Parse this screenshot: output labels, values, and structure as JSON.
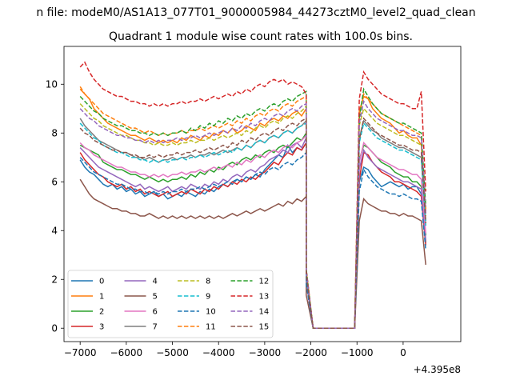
{
  "figure": {
    "suptitle": "n file: modeM0/AS1A13_077T01_9000005984_44273cztM0_level2_quad_clean",
    "title": "Quadrant 1 module wise count rates with 100.0s bins.",
    "offset_label": "+4.395e8"
  },
  "chart_data": {
    "type": "line",
    "title": "Quadrant 1 module wise count rates with 100.0s bins.",
    "xlabel": "",
    "ylabel": "",
    "x_offset": 439500000,
    "xlim": [
      -7350,
      1250
    ],
    "ylim": [
      -0.55,
      11.55
    ],
    "xticks": [
      -7000,
      -6000,
      -5000,
      -4000,
      -3000,
      -2000,
      -1000,
      0
    ],
    "xtick_labels": [
      "−7000",
      "−6000",
      "−5000",
      "−4000",
      "−3000",
      "−2000",
      "−1000",
      "0"
    ],
    "yticks": [
      0,
      2,
      4,
      6,
      8,
      10
    ],
    "ytick_labels": [
      "0",
      "2",
      "4",
      "6",
      "8",
      "10"
    ],
    "grid": false,
    "legend": {
      "placement": "lower-left",
      "ncol": 4
    },
    "gap": {
      "drop_start": -2100,
      "zero_start": -1950,
      "zero_end": -1050,
      "rise_end": -950
    },
    "x_segment1": [
      -7000,
      7,
      -2100
    ],
    "x_segment2": [
      -950,
      14,
      490
    ],
    "series": [
      {
        "name": "0",
        "color": "#1f77b4",
        "dash": false,
        "seg1": [
          6.9,
          6.6,
          6.4,
          6.3,
          6.1,
          5.9,
          5.8,
          5.9,
          5.7,
          5.8,
          5.6,
          5.7,
          5.5,
          5.6,
          5.4,
          5.5,
          5.6,
          5.4,
          5.5,
          5.3,
          5.4,
          5.5,
          5.4,
          5.6,
          5.5,
          5.4,
          5.6,
          5.5,
          5.7,
          5.6,
          5.8,
          5.9,
          5.8,
          6.0,
          6.1,
          6.0,
          6.2,
          6.1,
          6.3,
          6.2,
          6.5,
          6.7,
          6.9,
          7.1,
          7.0,
          7.5,
          7.2,
          7.4,
          7.3,
          7.6
        ],
        "seg2": [
          6.0,
          6.6,
          6.5,
          6.2,
          6.0,
          5.8,
          5.9,
          6.0,
          5.9,
          5.8,
          5.9,
          5.7,
          5.8,
          5.8,
          5.5,
          3.5
        ]
      },
      {
        "name": "1",
        "color": "#ff7f0e",
        "dash": false,
        "seg1": [
          9.8,
          9.6,
          9.4,
          9.0,
          8.8,
          8.6,
          8.4,
          8.3,
          8.2,
          8.1,
          8.0,
          7.9,
          7.9,
          7.8,
          7.7,
          7.8,
          7.7,
          7.6,
          7.7,
          7.6,
          7.7,
          7.6,
          7.8,
          7.7,
          7.9,
          7.8,
          7.7,
          7.9,
          7.8,
          8.0,
          7.9,
          8.1,
          8.0,
          8.2,
          8.0,
          8.1,
          8.3,
          8.2,
          8.1,
          8.4,
          8.3,
          8.5,
          8.6,
          8.5,
          8.7,
          8.6,
          8.8,
          8.9,
          8.7,
          9.0
        ],
        "seg2": [
          8.9,
          9.5,
          9.4,
          9.0,
          8.8,
          8.6,
          8.5,
          8.4,
          8.2,
          8.0,
          8.1,
          7.9,
          7.8,
          7.8,
          7.5,
          4.8
        ]
      },
      {
        "name": "2",
        "color": "#2ca02c",
        "dash": false,
        "seg1": [
          7.5,
          7.4,
          7.3,
          7.2,
          7.1,
          6.8,
          6.7,
          6.6,
          6.5,
          6.5,
          6.4,
          6.3,
          6.3,
          6.2,
          6.1,
          6.2,
          6.1,
          6.0,
          6.1,
          6.0,
          6.1,
          6.1,
          6.2,
          6.1,
          6.3,
          6.2,
          6.4,
          6.3,
          6.5,
          6.4,
          6.6,
          6.5,
          6.7,
          6.8,
          6.7,
          6.9,
          7.0,
          6.9,
          7.1,
          7.0,
          7.2,
          7.3,
          7.2,
          7.4,
          7.5,
          7.4,
          7.6,
          7.8,
          7.7,
          8.0
        ],
        "seg2": [
          6.9,
          7.5,
          7.4,
          7.2,
          7.0,
          6.8,
          6.7,
          6.6,
          6.4,
          6.3,
          6.2,
          6.2,
          6.0,
          6.0,
          5.8,
          3.8
        ]
      },
      {
        "name": "3",
        "color": "#d62728",
        "dash": false,
        "seg1": [
          7.2,
          6.9,
          6.7,
          6.5,
          6.3,
          6.2,
          6.0,
          5.9,
          5.8,
          5.9,
          5.7,
          5.8,
          5.6,
          5.7,
          5.5,
          5.6,
          5.5,
          5.4,
          5.5,
          5.6,
          5.4,
          5.5,
          5.6,
          5.5,
          5.7,
          5.6,
          5.5,
          5.7,
          5.6,
          5.8,
          5.7,
          5.9,
          5.8,
          6.0,
          5.9,
          6.1,
          6.0,
          6.2,
          6.1,
          6.3,
          6.4,
          6.6,
          6.8,
          6.7,
          7.0,
          7.2,
          7.1,
          7.4,
          7.3,
          7.6
        ],
        "seg2": [
          6.1,
          7.2,
          7.1,
          6.8,
          6.6,
          6.4,
          6.3,
          6.2,
          6.0,
          6.0,
          5.9,
          5.8,
          5.7,
          5.6,
          5.4,
          3.4
        ]
      },
      {
        "name": "4",
        "color": "#9467bd",
        "dash": false,
        "seg1": [
          7.4,
          7.2,
          7.0,
          6.8,
          6.6,
          6.5,
          6.4,
          6.3,
          6.2,
          6.1,
          6.0,
          5.9,
          5.8,
          5.9,
          5.7,
          5.8,
          5.7,
          5.6,
          5.7,
          5.8,
          5.6,
          5.7,
          5.8,
          5.7,
          5.9,
          5.8,
          5.7,
          5.9,
          5.8,
          6.0,
          5.9,
          6.1,
          6.0,
          6.2,
          6.3,
          6.2,
          6.4,
          6.5,
          6.4,
          6.6,
          6.7,
          6.9,
          7.0,
          7.1,
          7.3,
          7.2,
          7.5,
          7.6,
          7.4,
          7.8
        ],
        "seg2": [
          6.5,
          7.3,
          7.0,
          6.8,
          6.6,
          6.5,
          6.4,
          6.3,
          6.2,
          6.1,
          6.0,
          6.0,
          5.9,
          5.8,
          5.7,
          3.6
        ]
      },
      {
        "name": "5",
        "color": "#8c564b",
        "dash": false,
        "seg1": [
          6.1,
          5.8,
          5.5,
          5.3,
          5.2,
          5.1,
          5.0,
          4.9,
          4.9,
          4.8,
          4.8,
          4.7,
          4.7,
          4.6,
          4.6,
          4.7,
          4.6,
          4.5,
          4.6,
          4.5,
          4.6,
          4.5,
          4.6,
          4.5,
          4.6,
          4.5,
          4.6,
          4.5,
          4.6,
          4.5,
          4.6,
          4.5,
          4.6,
          4.7,
          4.6,
          4.7,
          4.8,
          4.7,
          4.8,
          4.9,
          4.8,
          4.9,
          5.0,
          5.1,
          5.0,
          5.2,
          5.1,
          5.3,
          5.2,
          5.4
        ],
        "seg2": [
          4.4,
          5.3,
          5.1,
          5.0,
          4.9,
          4.8,
          4.8,
          4.7,
          4.7,
          4.6,
          4.7,
          4.6,
          4.6,
          4.5,
          4.4,
          2.6
        ]
      },
      {
        "name": "6",
        "color": "#e377c2",
        "dash": false,
        "seg1": [
          7.6,
          7.4,
          7.3,
          7.1,
          7.0,
          6.9,
          6.8,
          6.7,
          6.6,
          6.6,
          6.5,
          6.4,
          6.4,
          6.3,
          6.3,
          6.2,
          6.3,
          6.2,
          6.3,
          6.2,
          6.3,
          6.3,
          6.4,
          6.3,
          6.4,
          6.4,
          6.5,
          6.4,
          6.5,
          6.6,
          6.5,
          6.6,
          6.7,
          6.6,
          6.8,
          6.7,
          6.9,
          6.8,
          7.0,
          7.1,
          7.0,
          7.2,
          7.3,
          7.2,
          7.4,
          7.5,
          7.4,
          7.6,
          7.7,
          7.9
        ],
        "seg2": [
          6.8,
          7.6,
          7.4,
          7.2,
          7.0,
          6.9,
          6.8,
          6.7,
          6.6,
          6.5,
          6.5,
          6.4,
          6.3,
          6.3,
          6.1,
          3.9
        ]
      },
      {
        "name": "7",
        "color": "#7f7f7f",
        "dash": false,
        "seg1": [
          8.6,
          8.3,
          8.1,
          7.9,
          7.7,
          7.6,
          7.5,
          7.4,
          7.3,
          7.2,
          7.2,
          7.1,
          7.0,
          7.0,
          6.9,
          7.0,
          6.9,
          6.8,
          6.9,
          6.9,
          7.0,
          6.9,
          7.0,
          7.0,
          7.1,
          7.0,
          7.1,
          7.1,
          7.2,
          7.1,
          7.2,
          7.3,
          7.2,
          7.3,
          7.4,
          7.3,
          7.5,
          7.4,
          7.6,
          7.7,
          7.6,
          7.8,
          7.9,
          7.8,
          8.0,
          8.1,
          8.0,
          8.2,
          8.3,
          8.5
        ],
        "seg2": [
          7.8,
          8.5,
          8.3,
          8.1,
          8.0,
          7.8,
          7.7,
          7.6,
          7.5,
          7.4,
          7.4,
          7.3,
          7.2,
          7.1,
          7.0,
          4.4
        ]
      },
      {
        "name": "8",
        "color": "#bcbd22",
        "dash": true,
        "seg1": [
          9.2,
          9.0,
          8.8,
          8.6,
          8.5,
          8.3,
          8.2,
          8.1,
          8.0,
          7.9,
          7.9,
          7.8,
          7.7,
          7.7,
          7.6,
          7.6,
          7.5,
          7.6,
          7.5,
          7.5,
          7.6,
          7.5,
          7.6,
          7.6,
          7.7,
          7.6,
          7.7,
          7.7,
          7.8,
          7.7,
          7.8,
          7.9,
          7.8,
          7.9,
          8.0,
          7.9,
          8.1,
          8.0,
          8.2,
          8.3,
          8.2,
          8.4,
          8.5,
          8.4,
          8.6,
          8.7,
          8.6,
          8.8,
          8.9,
          9.1
        ],
        "seg2": [
          8.3,
          9.0,
          8.8,
          8.6,
          8.4,
          8.3,
          8.2,
          8.1,
          8.0,
          7.9,
          7.9,
          7.8,
          7.7,
          7.6,
          7.5,
          4.6
        ]
      },
      {
        "name": "9",
        "color": "#17becf",
        "dash": true,
        "seg1": [
          8.4,
          8.2,
          8.0,
          7.8,
          7.7,
          7.5,
          7.4,
          7.3,
          7.2,
          7.2,
          7.1,
          7.0,
          7.0,
          6.9,
          6.9,
          6.8,
          6.9,
          6.8,
          6.9,
          6.8,
          6.9,
          6.9,
          7.0,
          6.9,
          7.0,
          7.0,
          7.1,
          7.0,
          7.1,
          7.2,
          7.1,
          7.2,
          7.3,
          7.2,
          7.4,
          7.3,
          7.5,
          7.4,
          7.6,
          7.7,
          7.6,
          7.8,
          7.9,
          7.8,
          8.0,
          8.1,
          8.0,
          8.2,
          8.3,
          8.4
        ],
        "seg2": [
          7.6,
          8.4,
          8.2,
          8.0,
          7.8,
          7.7,
          7.6,
          7.5,
          7.4,
          7.3,
          7.3,
          7.2,
          7.1,
          7.0,
          6.9,
          4.2
        ]
      },
      {
        "name": "10",
        "color": "#1f77b4",
        "dash": true,
        "seg1": [
          7.0,
          6.8,
          6.6,
          6.4,
          6.3,
          6.2,
          6.1,
          6.0,
          5.9,
          5.9,
          5.8,
          5.7,
          5.7,
          5.6,
          5.6,
          5.5,
          5.6,
          5.5,
          5.6,
          5.5,
          5.6,
          5.6,
          5.7,
          5.6,
          5.7,
          5.7,
          5.8,
          5.7,
          5.8,
          5.9,
          5.8,
          5.9,
          6.0,
          5.9,
          6.1,
          6.0,
          6.2,
          6.1,
          6.3,
          6.4,
          6.3,
          6.5,
          6.6,
          6.5,
          6.7,
          6.8,
          6.7,
          6.9,
          7.0,
          7.2
        ],
        "seg2": [
          5.6,
          6.5,
          6.2,
          6.0,
          5.8,
          5.7,
          5.6,
          5.5,
          5.5,
          5.4,
          5.5,
          5.4,
          5.3,
          5.3,
          5.2,
          3.2
        ]
      },
      {
        "name": "11",
        "color": "#ff7f0e",
        "dash": true,
        "seg1": [
          9.9,
          9.6,
          9.4,
          9.2,
          9.0,
          8.8,
          8.7,
          8.6,
          8.5,
          8.4,
          8.3,
          8.2,
          8.2,
          8.1,
          8.0,
          8.1,
          8.0,
          7.9,
          8.0,
          7.9,
          8.0,
          8.0,
          8.1,
          8.0,
          8.1,
          8.1,
          8.2,
          8.1,
          8.2,
          8.3,
          8.2,
          8.3,
          8.4,
          8.3,
          8.5,
          8.4,
          8.6,
          8.5,
          8.7,
          8.8,
          8.7,
          8.9,
          9.0,
          8.9,
          9.1,
          9.2,
          9.1,
          9.3,
          9.4,
          9.5
        ],
        "seg2": [
          8.7,
          9.6,
          9.4,
          9.2,
          9.0,
          8.8,
          8.7,
          8.6,
          8.5,
          8.4,
          8.3,
          8.2,
          8.1,
          8.0,
          7.9,
          4.9
        ]
      },
      {
        "name": "12",
        "color": "#2ca02c",
        "dash": true,
        "seg1": [
          9.5,
          9.3,
          9.1,
          8.9,
          8.8,
          8.6,
          8.5,
          8.4,
          8.3,
          8.3,
          8.2,
          8.1,
          8.1,
          8.0,
          8.0,
          7.9,
          8.0,
          7.9,
          8.0,
          7.9,
          8.0,
          8.0,
          8.1,
          8.0,
          8.2,
          8.1,
          8.3,
          8.2,
          8.4,
          8.3,
          8.5,
          8.4,
          8.6,
          8.5,
          8.7,
          8.6,
          8.8,
          8.7,
          8.9,
          9.0,
          8.9,
          9.1,
          9.2,
          9.1,
          9.3,
          9.4,
          9.3,
          9.5,
          9.6,
          9.7
        ],
        "seg2": [
          8.6,
          9.8,
          9.5,
          9.2,
          9.0,
          8.8,
          8.7,
          8.6,
          8.5,
          8.4,
          8.4,
          8.3,
          8.2,
          8.1,
          8.0,
          5.0
        ]
      },
      {
        "name": "13",
        "color": "#d62728",
        "dash": true,
        "seg1": [
          10.7,
          10.9,
          10.5,
          10.2,
          10.0,
          9.8,
          9.7,
          9.6,
          9.5,
          9.5,
          9.4,
          9.3,
          9.3,
          9.2,
          9.2,
          9.1,
          9.2,
          9.1,
          9.2,
          9.1,
          9.2,
          9.2,
          9.3,
          9.2,
          9.3,
          9.3,
          9.4,
          9.3,
          9.4,
          9.5,
          9.4,
          9.5,
          9.6,
          9.5,
          9.7,
          9.6,
          9.8,
          9.7,
          9.9,
          10.0,
          9.9,
          10.1,
          10.2,
          10.1,
          10.2,
          10.0,
          10.1,
          10.0,
          9.9,
          9.6
        ],
        "seg2": [
          9.4,
          10.5,
          10.2,
          10.0,
          9.8,
          9.6,
          9.5,
          9.4,
          9.3,
          9.2,
          9.2,
          9.1,
          9.0,
          9.0,
          9.7,
          5.6
        ]
      },
      {
        "name": "14",
        "color": "#9467bd",
        "dash": true,
        "seg1": [
          9.0,
          8.8,
          8.6,
          8.5,
          8.3,
          8.2,
          8.1,
          8.0,
          7.9,
          7.9,
          7.8,
          7.8,
          7.7,
          7.7,
          7.6,
          7.7,
          7.6,
          7.7,
          7.6,
          7.7,
          7.7,
          7.8,
          7.7,
          7.8,
          7.8,
          7.9,
          7.8,
          7.9,
          8.0,
          7.9,
          8.0,
          8.1,
          8.0,
          8.2,
          8.1,
          8.3,
          8.2,
          8.4,
          8.3,
          8.5,
          8.6,
          8.5,
          8.7,
          8.8,
          8.7,
          8.9,
          9.0,
          8.9,
          9.1,
          9.2
        ],
        "seg2": [
          8.4,
          9.3,
          9.0,
          8.8,
          8.6,
          8.5,
          8.4,
          8.3,
          8.2,
          8.1,
          8.1,
          8.0,
          7.9,
          7.9,
          7.8,
          4.7
        ]
      },
      {
        "name": "15",
        "color": "#8c564b",
        "dash": true,
        "seg1": [
          8.2,
          8.0,
          7.9,
          7.7,
          7.6,
          7.5,
          7.4,
          7.3,
          7.3,
          7.2,
          7.2,
          7.1,
          7.1,
          7.0,
          7.0,
          7.1,
          7.0,
          7.1,
          7.0,
          7.1,
          7.1,
          7.2,
          7.1,
          7.2,
          7.2,
          7.3,
          7.2,
          7.3,
          7.4,
          7.3,
          7.4,
          7.5,
          7.4,
          7.6,
          7.5,
          7.7,
          7.6,
          7.8,
          7.7,
          7.9,
          8.0,
          7.9,
          8.1,
          8.2,
          8.1,
          8.3,
          8.4,
          8.3,
          8.5,
          8.6
        ],
        "seg2": [
          7.7,
          8.6,
          8.4,
          8.2,
          8.0,
          7.9,
          7.8,
          7.7,
          7.6,
          7.5,
          7.5,
          7.4,
          7.3,
          7.3,
          7.2,
          4.3
        ]
      }
    ]
  }
}
